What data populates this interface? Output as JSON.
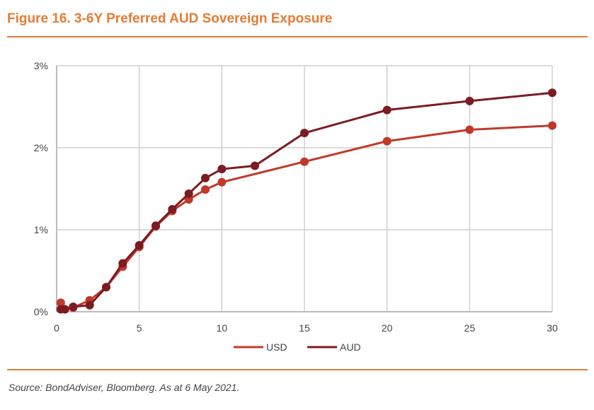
{
  "title": "Figure 16. 3-6Y Preferred AUD Sovereign Exposure",
  "source": "Source: BondAdviser, Bloomberg. As at 6 May 2021.",
  "chart_data": {
    "type": "line",
    "xlim": [
      0,
      30
    ],
    "ylim": [
      0,
      3
    ],
    "xticks": [
      "0",
      "5",
      "10",
      "15",
      "20",
      "25",
      "30"
    ],
    "yticks": [
      "0%",
      "1%",
      "2%",
      "3%"
    ],
    "grid": true,
    "legend": "bottom",
    "series": [
      {
        "name": "USD",
        "color": "#c0392b",
        "x": [
          0.25,
          0.5,
          1,
          2,
          3,
          4,
          5,
          6,
          7,
          8,
          9,
          10,
          15,
          20,
          25,
          30
        ],
        "y": [
          0.11,
          0.03,
          0.05,
          0.14,
          0.3,
          0.55,
          0.79,
          1.04,
          1.23,
          1.37,
          1.49,
          1.58,
          1.83,
          2.08,
          2.22,
          2.27
        ]
      },
      {
        "name": "AUD",
        "color": "#7b1c22",
        "x": [
          0.25,
          0.5,
          1,
          2,
          3,
          4,
          5,
          6,
          7,
          8,
          9,
          10,
          12,
          15,
          20,
          25,
          30
        ],
        "y": [
          0.03,
          0.03,
          0.06,
          0.08,
          0.3,
          0.59,
          0.81,
          1.05,
          1.25,
          1.44,
          1.63,
          1.74,
          1.78,
          2.18,
          2.46,
          2.57,
          2.67
        ]
      }
    ]
  }
}
